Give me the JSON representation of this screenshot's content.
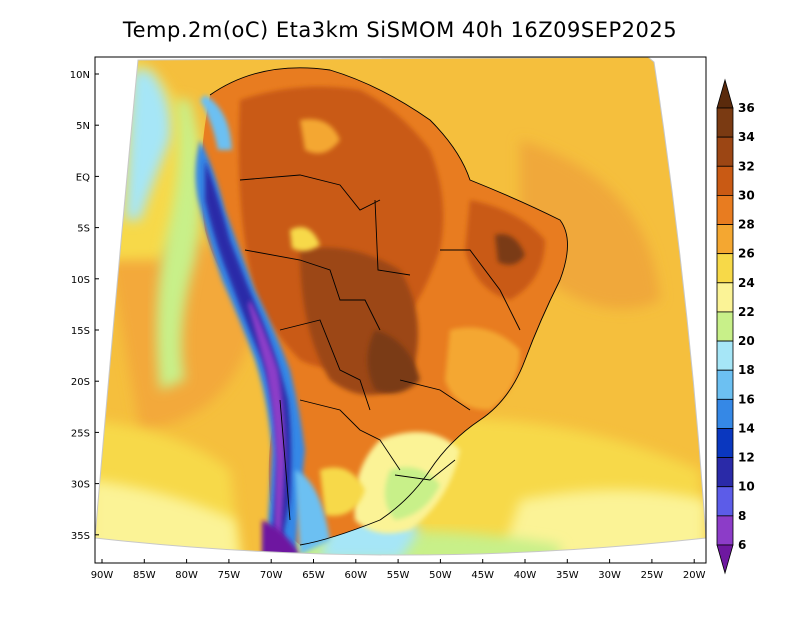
{
  "title": "Temp.2m(oC) Eta3km SiSMOM 40h 16Z09SEP2025",
  "map": {
    "lat_labels": [
      "10N",
      "5N",
      "EQ",
      "5S",
      "10S",
      "15S",
      "20S",
      "25S",
      "30S",
      "35S"
    ],
    "lon_labels": [
      "90W",
      "85W",
      "80W",
      "75W",
      "70W",
      "65W",
      "60W",
      "55W",
      "50W",
      "45W",
      "40W",
      "35W",
      "30W",
      "25W",
      "20W"
    ]
  },
  "colorbar": {
    "labels": [
      "36",
      "34",
      "32",
      "30",
      "28",
      "26",
      "24",
      "22",
      "20",
      "18",
      "16",
      "14",
      "12",
      "10",
      "8",
      "6"
    ],
    "colors": [
      "#5a2a0c",
      "#7a3a12",
      "#9c4614",
      "#c95a14",
      "#e87c20",
      "#f4a731",
      "#f7d948",
      "#fbf396",
      "#c8f089",
      "#a6e6f7",
      "#6cc0f2",
      "#3588e6",
      "#0a37bf",
      "#2a2aa8",
      "#5c5ce8",
      "#8c3cc8",
      "#6e18a0"
    ]
  }
}
